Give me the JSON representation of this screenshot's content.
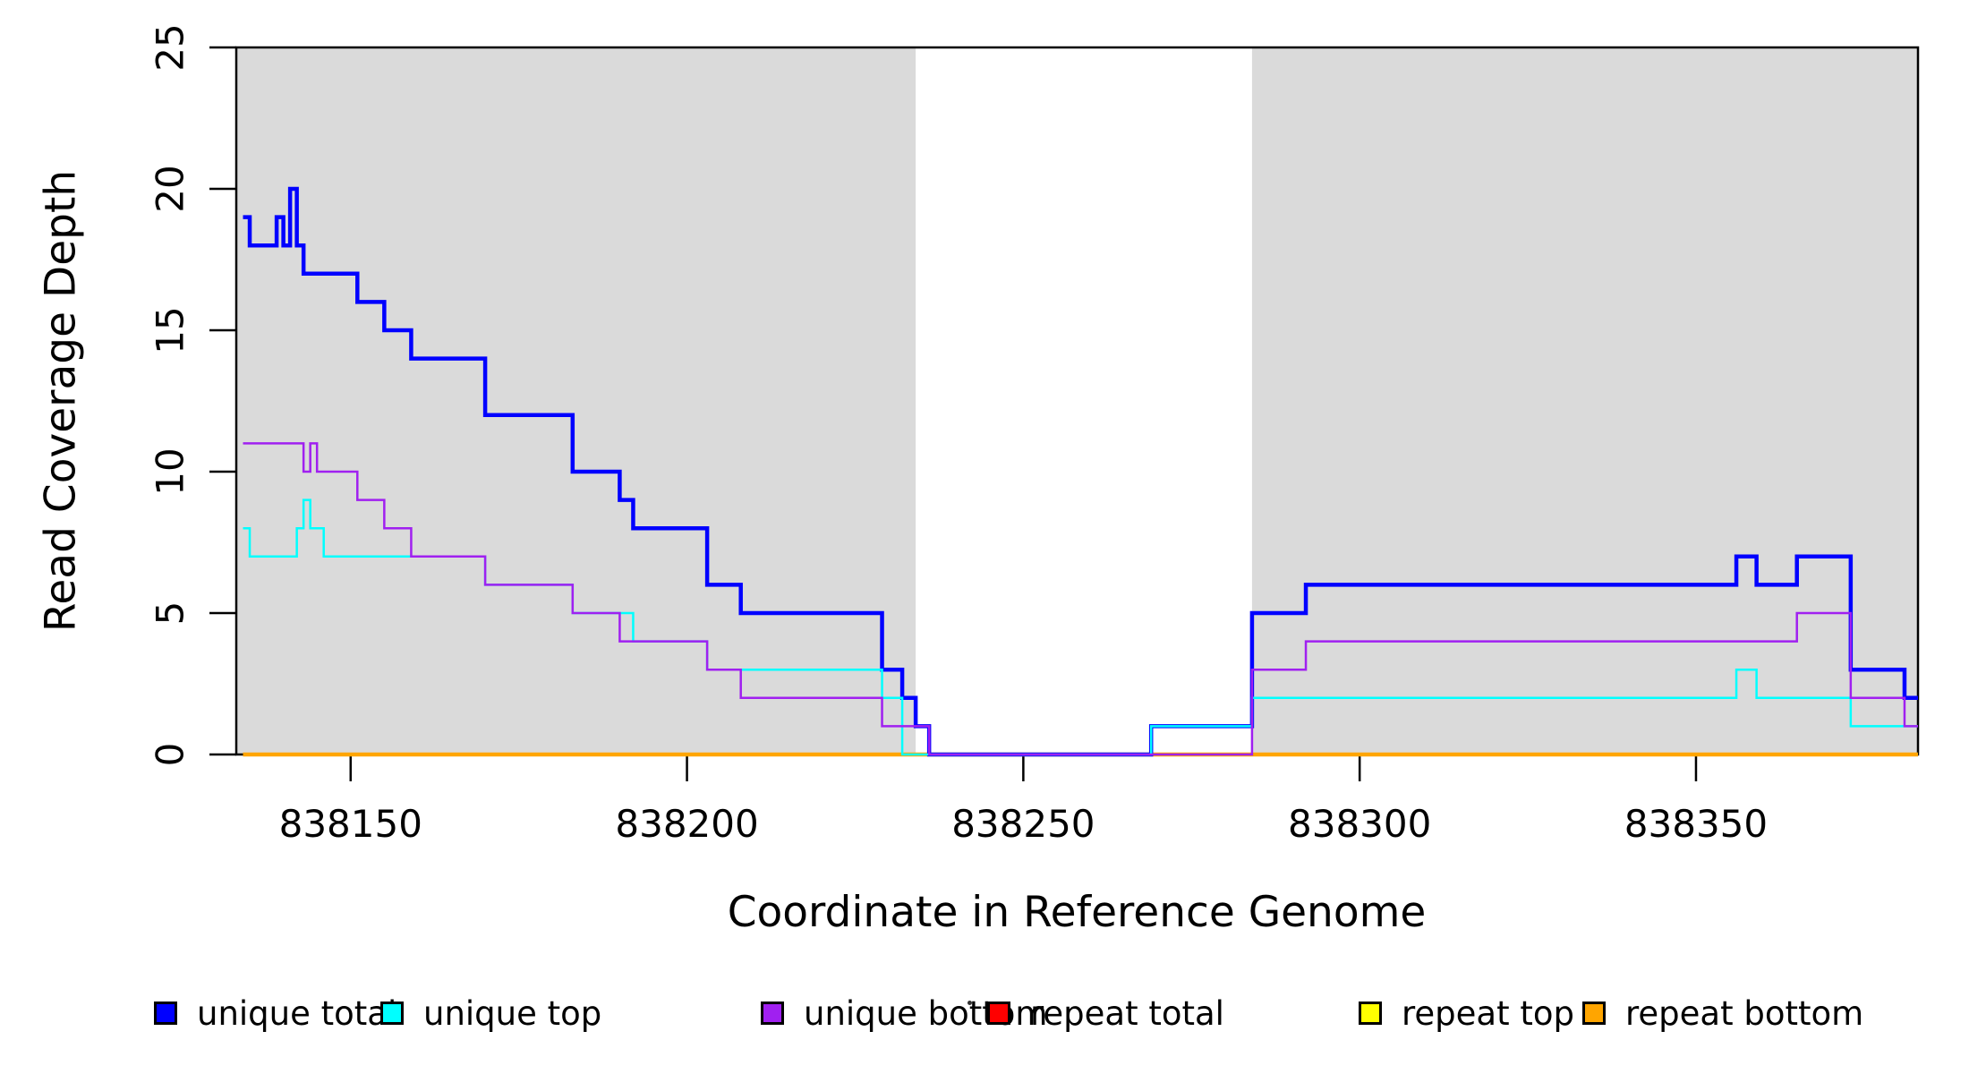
{
  "chart_data": {
    "type": "line",
    "subtype": "step",
    "title": "",
    "xlabel": "Coordinate in Reference Genome",
    "ylabel": "Read Coverage Depth",
    "xlim": [
      838133,
      838383
    ],
    "ylim": [
      0,
      25
    ],
    "grid": false,
    "legend_position": "bottom",
    "background_color": "#FFFFFF",
    "shaded_regions": [
      {
        "from": 838133,
        "to": 838234,
        "color": "#DADADA"
      },
      {
        "from": 838284,
        "to": 838383,
        "color": "#DADADA"
      }
    ],
    "xticks": [
      {
        "value": 838150,
        "label": "838150"
      },
      {
        "value": 838200,
        "label": "838200"
      },
      {
        "value": 838250,
        "label": "838250"
      },
      {
        "value": 838300,
        "label": "838300"
      },
      {
        "value": 838350,
        "label": "838350"
      }
    ],
    "yticks": [
      {
        "value": 0,
        "label": "0"
      },
      {
        "value": 5,
        "label": "5"
      },
      {
        "value": 10,
        "label": "10"
      },
      {
        "value": 15,
        "label": "15"
      },
      {
        "value": 20,
        "label": "20"
      },
      {
        "value": 25,
        "label": "25"
      }
    ],
    "series": [
      {
        "name": "unique total",
        "color": "#0000FF",
        "width": 4.5,
        "steps": [
          [
            838134,
            19
          ],
          [
            838135,
            18
          ],
          [
            838139,
            19
          ],
          [
            838140,
            18
          ],
          [
            838141,
            20
          ],
          [
            838142,
            18
          ],
          [
            838143,
            17
          ],
          [
            838151,
            16
          ],
          [
            838155,
            15
          ],
          [
            838159,
            14
          ],
          [
            838170,
            12
          ],
          [
            838183,
            10
          ],
          [
            838190,
            9
          ],
          [
            838192,
            8
          ],
          [
            838203,
            6
          ],
          [
            838208,
            5
          ],
          [
            838229,
            3
          ],
          [
            838232,
            2
          ],
          [
            838234,
            1
          ],
          [
            838236,
            0
          ],
          [
            838269,
            1
          ],
          [
            838284,
            5
          ],
          [
            838292,
            6
          ],
          [
            838356,
            7
          ],
          [
            838359,
            6
          ],
          [
            838365,
            7
          ],
          [
            838373,
            3
          ],
          [
            838381,
            2
          ]
        ]
      },
      {
        "name": "unique top",
        "color": "#00FFFF",
        "width": 2.5,
        "steps": [
          [
            838134,
            8
          ],
          [
            838135,
            7
          ],
          [
            838142,
            8
          ],
          [
            838143,
            9
          ],
          [
            838144,
            8
          ],
          [
            838146,
            7
          ],
          [
            838170,
            6
          ],
          [
            838183,
            5
          ],
          [
            838192,
            4
          ],
          [
            838203,
            3
          ],
          [
            838229,
            2
          ],
          [
            838232,
            0
          ],
          [
            838269,
            1
          ],
          [
            838284,
            2
          ],
          [
            838356,
            3
          ],
          [
            838359,
            2
          ],
          [
            838373,
            1
          ]
        ]
      },
      {
        "name": "unique bottom",
        "color": "#A020F0",
        "width": 2.5,
        "steps": [
          [
            838134,
            11
          ],
          [
            838143,
            10
          ],
          [
            838144,
            11
          ],
          [
            838145,
            10
          ],
          [
            838151,
            9
          ],
          [
            838155,
            8
          ],
          [
            838159,
            7
          ],
          [
            838170,
            6
          ],
          [
            838183,
            5
          ],
          [
            838190,
            4
          ],
          [
            838203,
            3
          ],
          [
            838208,
            2
          ],
          [
            838229,
            1
          ],
          [
            838236,
            0
          ],
          [
            838284,
            3
          ],
          [
            838292,
            4
          ],
          [
            838365,
            5
          ],
          [
            838373,
            2
          ],
          [
            838381,
            1
          ]
        ]
      },
      {
        "name": "repeat total",
        "color": "#FF0000",
        "width": 3,
        "steps": [
          [
            838134,
            0
          ]
        ]
      },
      {
        "name": "repeat top",
        "color": "#FFFF00",
        "width": 3,
        "steps": [
          [
            838134,
            0
          ]
        ]
      },
      {
        "name": "repeat bottom",
        "color": "#FFA500",
        "width": 4.5,
        "steps": [
          [
            838134,
            0
          ]
        ]
      }
    ],
    "draw_order": [
      4,
      3,
      5,
      0,
      1,
      2
    ]
  },
  "legend": {
    "items": [
      {
        "label": "unique total",
        "color": "#0000FF"
      },
      {
        "label": "unique top",
        "color": "#00FFFF"
      },
      {
        "label": "unique bottom",
        "color": "#A020F0"
      },
      {
        "label": "repeat total",
        "color": "#FF0000"
      },
      {
        "label": "repeat top",
        "color": "#FFFF00"
      },
      {
        "label": "repeat bottom",
        "color": "#FFA500"
      }
    ]
  }
}
